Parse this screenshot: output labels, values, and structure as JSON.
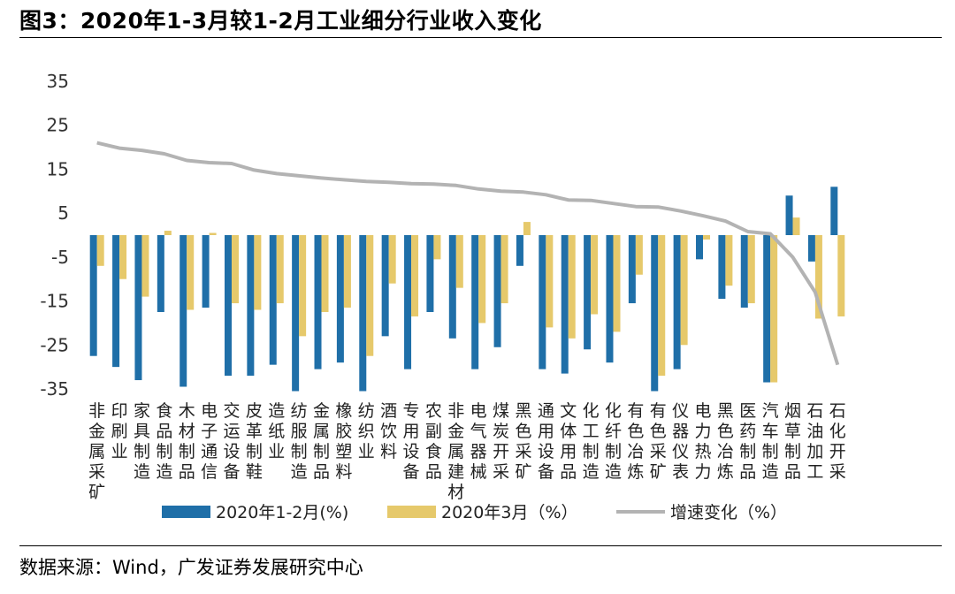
{
  "title": "图3：2020年1-3月较1-2月工业细分行业收入变化",
  "source": "数据来源：Wind，广发证券发展研究中心",
  "colors": {
    "series1": "#1f6fa8",
    "series2": "#e6c96b",
    "line": "#b3b3b3"
  },
  "chart_data": {
    "type": "bar",
    "title": "2020年1-3月较1-2月工业细分行业收入变化",
    "ylim": [
      -35,
      35
    ],
    "yticks": [
      35,
      25,
      15,
      5,
      -5,
      -15,
      -25,
      -35
    ],
    "grid": false,
    "legend_position": "bottom",
    "categories": [
      "非金属采矿",
      "印刷业",
      "家具制造",
      "食品制造",
      "木材制品",
      "电子通信",
      "交运设备",
      "皮革制鞋",
      "造纸业",
      "纺服制造",
      "金属制品",
      "橡胶塑料",
      "纺织业",
      "酒饮料",
      "专用设备",
      "农副食品",
      "非金属建材",
      "电气器械",
      "煤炭开采",
      "黑色采矿",
      "通用设备",
      "文体用品",
      "化工制造",
      "化纤制造",
      "有色冶炼",
      "有色采矿",
      "仪器仪表",
      "电力热力",
      "黑色冶炼",
      "医药制品",
      "汽车制造",
      "烟草制品",
      "石油加工",
      "石化开采"
    ],
    "series": [
      {
        "name": "2020年1-2月(%)",
        "kind": "bar",
        "values": [
          -27.5,
          -30,
          -33,
          -17.5,
          -34.5,
          -16.5,
          -32,
          -32,
          -29.5,
          -35.5,
          -30.5,
          -29,
          -35.5,
          -23,
          -30.5,
          -17.5,
          -23.5,
          -30.5,
          -25.5,
          -7,
          -30.5,
          -31.5,
          -26,
          -29,
          -15.5,
          -35.5,
          -30.5,
          -5.5,
          -14.5,
          -16.5,
          -33.5,
          9,
          -6,
          11
        ]
      },
      {
        "name": "2020年3月（%）",
        "kind": "bar",
        "values": [
          -7,
          -10,
          -14,
          1,
          -17,
          0.5,
          -15.5,
          -17,
          -15.5,
          -23,
          -17.5,
          -16.5,
          -27.5,
          -11,
          -18.5,
          -5.5,
          -12,
          -20,
          -15.5,
          3,
          -21,
          -23.5,
          -18,
          -22,
          -9,
          -32,
          -25,
          -1,
          -11.5,
          -15.5,
          -33.5,
          4,
          -19,
          -18.5
        ]
      },
      {
        "name": "增速变化（%）",
        "kind": "line",
        "values": [
          21,
          19.8,
          19.3,
          18.5,
          17,
          16.5,
          16.3,
          14.8,
          14,
          13.5,
          13,
          12.6,
          12.2,
          12,
          11.7,
          11.6,
          11.3,
          10.5,
          10,
          9.8,
          9.2,
          8,
          7.9,
          7.2,
          6.5,
          6.4,
          5.5,
          4.4,
          3.2,
          0.8,
          0.3,
          -5,
          -13,
          -29.5
        ]
      }
    ]
  }
}
